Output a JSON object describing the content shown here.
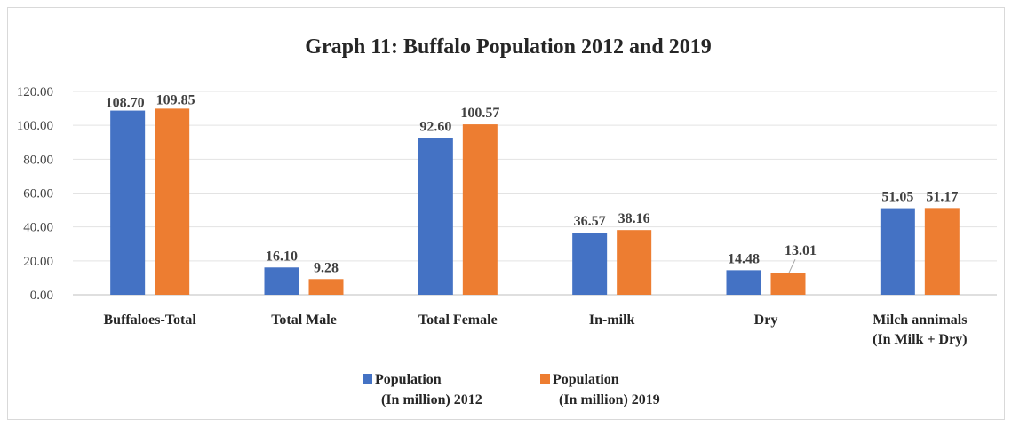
{
  "chart_data": {
    "type": "bar",
    "title": "Graph 11: Buffalo Population 2012 and 2019",
    "categories": [
      [
        "Buffaloes-Total"
      ],
      [
        "Total Male"
      ],
      [
        "Total Female"
      ],
      [
        "In-milk"
      ],
      [
        "Dry"
      ],
      [
        "Milch annimals",
        "(In Milk + Dry)"
      ]
    ],
    "series": [
      {
        "name": [
          "Population",
          "(In million) 2012"
        ],
        "color": "#4472c4",
        "values": [
          108.7,
          16.1,
          92.6,
          36.57,
          14.48,
          51.05
        ],
        "labels": [
          "108.70",
          "16.10",
          "92.60",
          "36.57",
          "14.48",
          "51.05"
        ]
      },
      {
        "name": [
          "Population",
          "(In million) 2019"
        ],
        "color": "#ed7d31",
        "values": [
          109.85,
          9.28,
          100.57,
          38.16,
          13.01,
          51.17
        ],
        "labels": [
          "109.85",
          "9.28",
          "100.57",
          "38.16",
          "13.01",
          "51.17"
        ]
      }
    ],
    "ylim": [
      0,
      120
    ],
    "yticks": [
      "0.00",
      "20.00",
      "40.00",
      "60.00",
      "80.00",
      "100.00",
      "120.00"
    ],
    "grid": true,
    "legend": "bottom"
  }
}
